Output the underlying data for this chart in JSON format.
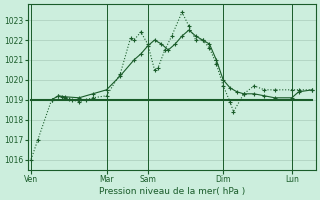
{
  "background_color": "#cceedd",
  "grid_color": "#aaccbb",
  "line_color": "#1a5c2a",
  "title": "Pression niveau de la mer( hPa )",
  "ylim": [
    1015.5,
    1023.8
  ],
  "yticks": [
    1016,
    1017,
    1018,
    1019,
    1020,
    1021,
    1022,
    1023
  ],
  "xlim": [
    0,
    42
  ],
  "day_labels": [
    "Ven",
    "Mar",
    "Sam",
    "Dim",
    "Lun"
  ],
  "day_positions": [
    0.5,
    11.5,
    17.5,
    28.5,
    38.5
  ],
  "vline_positions": [
    0.5,
    11.5,
    17.5,
    28.5,
    38.5
  ],
  "series1_x": [
    0.5,
    1.5,
    3.5,
    4.5,
    5.0,
    5.5,
    6.0,
    6.5,
    7.5,
    8.5,
    9.5,
    11.5,
    13.5,
    15.0,
    15.5,
    16.5,
    17.5,
    18.5,
    19.0,
    20.0,
    21.0,
    22.5,
    23.5,
    24.5,
    25.5,
    26.5,
    27.5,
    28.5,
    29.5,
    30.0,
    31.5,
    33.0,
    34.5,
    36.0,
    38.5,
    39.5,
    41.5
  ],
  "series1_y": [
    1016.0,
    1017.0,
    1019.0,
    1019.2,
    1019.15,
    1019.1,
    1019.05,
    1019.0,
    1018.9,
    1019.0,
    1019.1,
    1019.2,
    1020.3,
    1022.1,
    1022.0,
    1022.4,
    1021.8,
    1020.5,
    1020.6,
    1021.5,
    1022.2,
    1023.4,
    1022.7,
    1022.0,
    1022.0,
    1021.6,
    1020.8,
    1019.7,
    1018.9,
    1018.4,
    1019.3,
    1019.7,
    1019.5,
    1019.5,
    1019.5,
    1019.5,
    1019.5
  ],
  "series2_x": [
    0.5,
    41.5
  ],
  "series2_y": [
    1019.0,
    1019.0
  ],
  "series3_x": [
    3.5,
    4.5,
    5.5,
    7.5,
    9.5,
    11.5,
    13.5,
    15.5,
    16.5,
    17.5,
    18.5,
    19.5,
    20.5,
    21.5,
    22.5,
    23.5,
    24.5,
    25.5,
    26.5,
    27.5,
    28.5,
    29.5,
    30.5,
    31.5,
    33.0,
    34.5,
    36.0,
    38.5,
    39.5,
    41.5
  ],
  "series3_y": [
    1019.0,
    1019.2,
    1019.15,
    1019.1,
    1019.3,
    1019.5,
    1020.2,
    1021.0,
    1021.3,
    1021.7,
    1022.0,
    1021.8,
    1021.5,
    1021.8,
    1022.2,
    1022.5,
    1022.2,
    1022.0,
    1021.8,
    1021.0,
    1020.0,
    1019.6,
    1019.4,
    1019.3,
    1019.3,
    1019.2,
    1019.1,
    1019.1,
    1019.4,
    1019.5
  ]
}
